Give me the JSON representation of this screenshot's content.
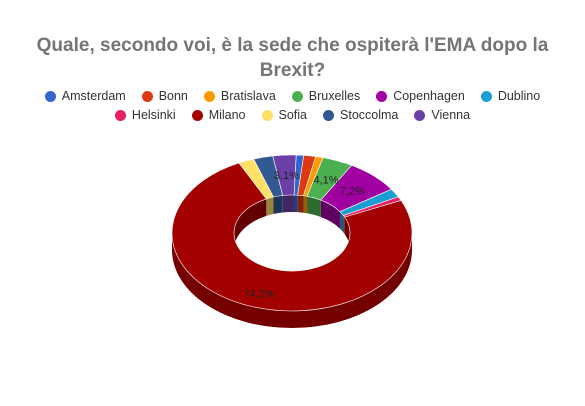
{
  "chart_data": {
    "type": "pie",
    "variant": "3d-donut",
    "title_lines": [
      "Quale, secondo voi, è la sede che ospiterà l'EMA dopo la",
      "Brexit?"
    ],
    "legend_position": "top",
    "slices": [
      {
        "name": "Amsterdam",
        "value": 1.0,
        "color": "#3366cc",
        "label": ""
      },
      {
        "name": "Bonn",
        "value": 1.6,
        "color": "#dc3912",
        "label": ""
      },
      {
        "name": "Bratislava",
        "value": 1.0,
        "color": "#ff9900",
        "label": ""
      },
      {
        "name": "Bruxelles",
        "value": 4.1,
        "color": "#4caf50",
        "label": "4,1%"
      },
      {
        "name": "Copenhagen",
        "value": 7.2,
        "color": "#a000a0",
        "label": "7,2%"
      },
      {
        "name": "Dublino",
        "value": 1.8,
        "color": "#1a9fd4",
        "label": ""
      },
      {
        "name": "Helsinki",
        "value": 0.8,
        "color": "#e91e63",
        "label": ""
      },
      {
        "name": "Milano",
        "value": 74.2,
        "color": "#a30000",
        "label": "74,2%"
      },
      {
        "name": "Sofia",
        "value": 2.1,
        "color": "#ffe066",
        "label": ""
      },
      {
        "name": "Stoccolma",
        "value": 2.6,
        "color": "#315a93",
        "label": ""
      },
      {
        "name": "Vienna",
        "value": 3.1,
        "color": "#6b3fa8",
        "label": "3,1%"
      }
    ]
  }
}
